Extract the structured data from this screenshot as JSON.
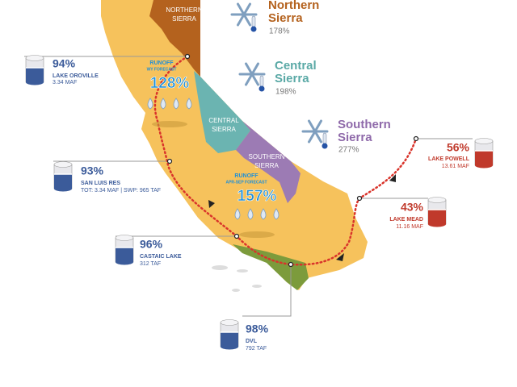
{
  "map_labels": [
    [
      "NORTHERN",
      "SIERRA"
    ],
    [
      "CENTRAL",
      "SIERRA"
    ],
    [
      "SOUTHERN",
      "SIERRA"
    ]
  ],
  "snow_indices": [
    {
      "name": [
        "Northern",
        "Sierra"
      ],
      "value": "178%"
    },
    {
      "name": [
        "Central",
        "Sierra"
      ],
      "value": "198%"
    },
    {
      "name": [
        "Southern",
        "Sierra"
      ],
      "value": "277%"
    }
  ],
  "runoff": [
    {
      "label": "RUNOFF",
      "sub": "WY FORECAST",
      "value": "128%"
    },
    {
      "label": "RUNOFF",
      "sub": "APR-SEP FORECAST",
      "value": "157%"
    }
  ],
  "reservoirs": [
    {
      "percent": "94%",
      "name": "LAKE OROVILLE",
      "detail": "3.34 MAF"
    },
    {
      "percent": "93%",
      "name": "SAN LUIS RES",
      "detail": "TOT: 3.34 MAF | SWP: 965 TAF"
    },
    {
      "percent": "96%",
      "name": "CASTAIC LAKE",
      "detail": "312 TAF"
    },
    {
      "percent": "98%",
      "name": "DVL",
      "detail": "792 TAF"
    },
    {
      "percent": "56%",
      "name": "LAKE POWELL",
      "detail": "13.61 MAF"
    },
    {
      "percent": "43%",
      "name": "LAKE MEAD",
      "detail": "11.16 MAF"
    }
  ]
}
